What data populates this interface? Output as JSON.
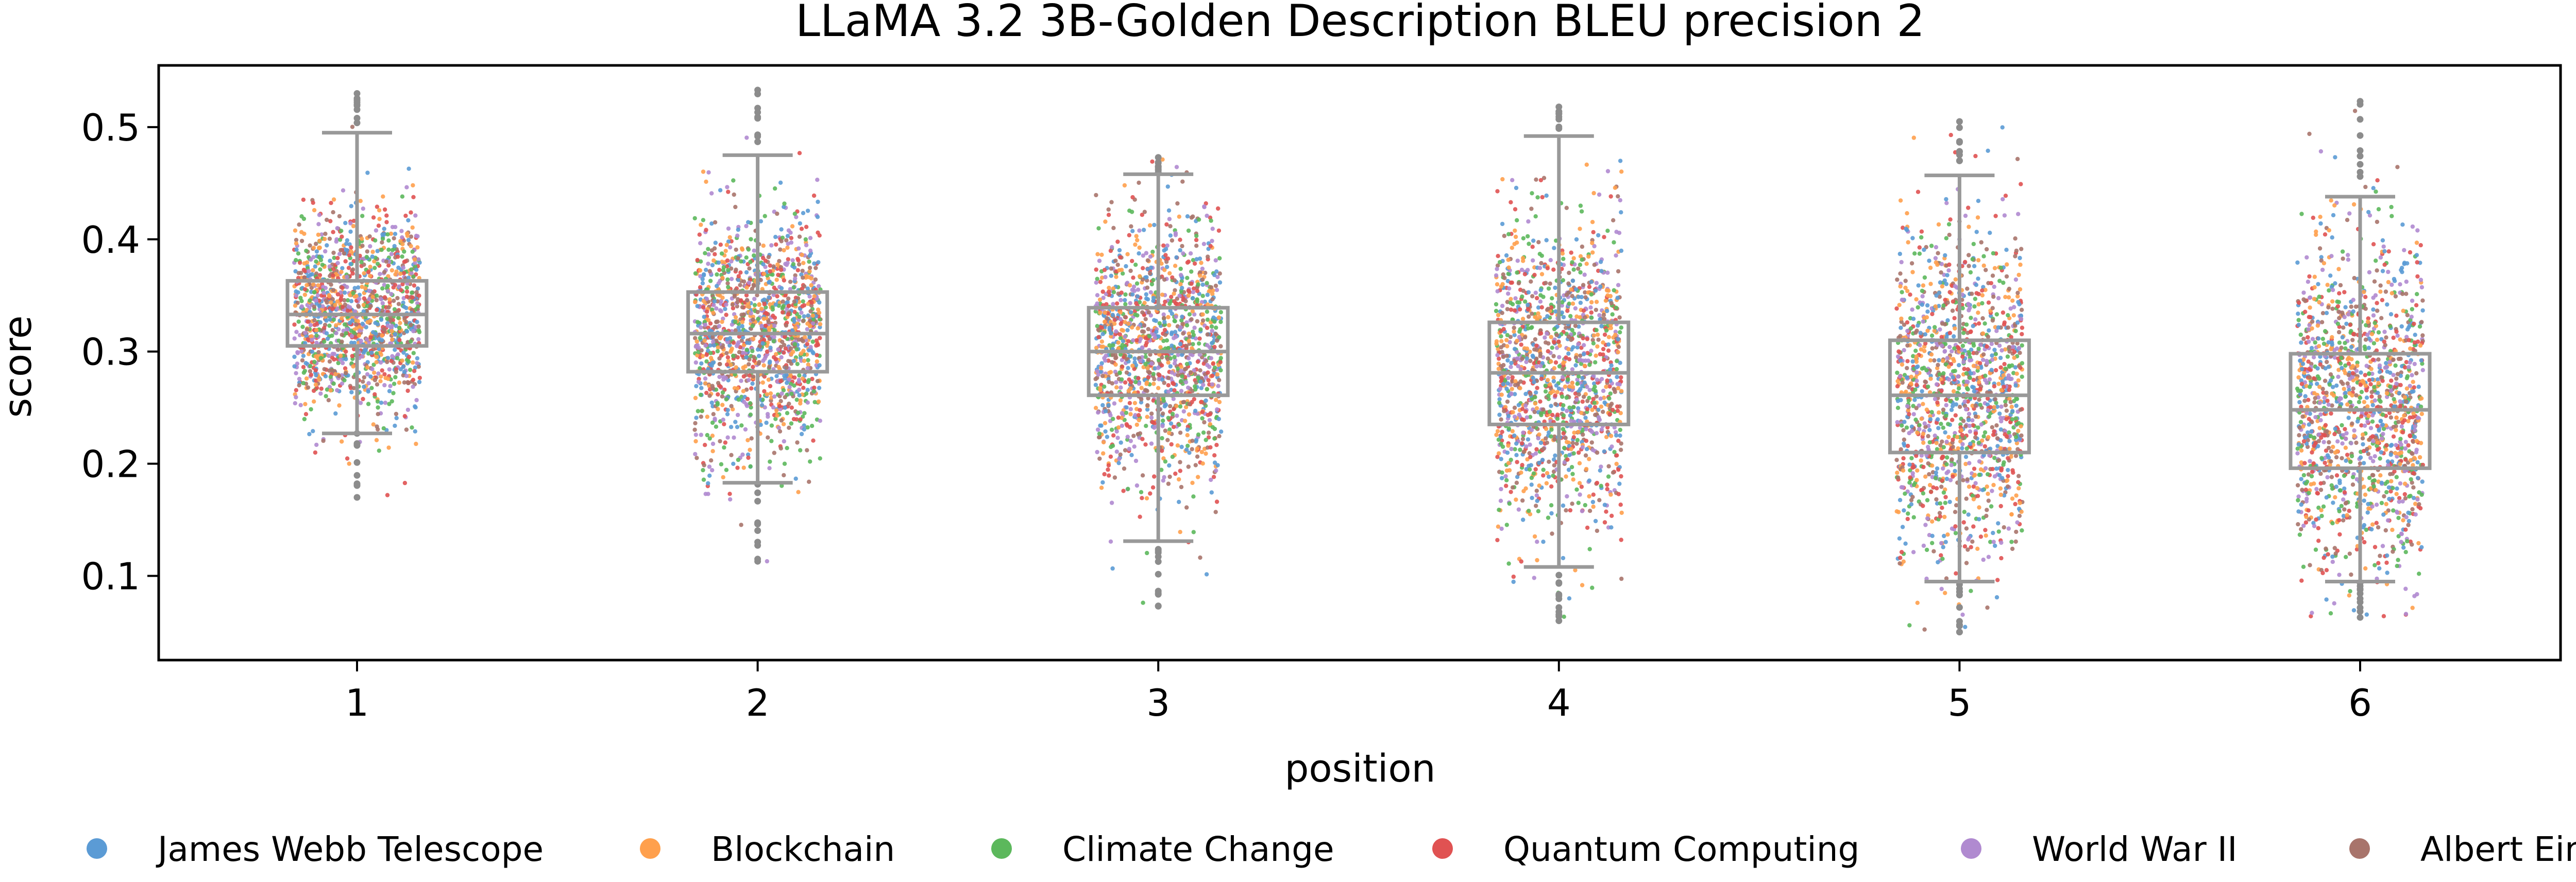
{
  "chart_data": {
    "type": "box-strip",
    "title": "LLaMA 3.2 3B-Golden Description BLEU precision 2",
    "xlabel": "position",
    "ylabel": "score",
    "categories": [
      "1",
      "2",
      "3",
      "4",
      "5",
      "6"
    ],
    "ylim": [
      0.025,
      0.555
    ],
    "yticks": [
      0.1,
      0.2,
      0.3,
      0.4,
      0.5
    ],
    "ytick_labels": [
      "0.1",
      "0.2",
      "0.3",
      "0.4",
      "0.5"
    ],
    "grid": false,
    "legend_position": "bottom",
    "boxes": [
      {
        "position": "1",
        "q1": 0.305,
        "median": 0.333,
        "q3": 0.363,
        "whisker_low": 0.227,
        "whisker_high": 0.495,
        "point_min": 0.17,
        "point_max": 0.53
      },
      {
        "position": "2",
        "q1": 0.282,
        "median": 0.316,
        "q3": 0.353,
        "whisker_low": 0.183,
        "whisker_high": 0.475,
        "point_min": 0.113,
        "point_max": 0.533
      },
      {
        "position": "3",
        "q1": 0.261,
        "median": 0.3,
        "q3": 0.339,
        "whisker_low": 0.131,
        "whisker_high": 0.458,
        "point_min": 0.073,
        "point_max": 0.473
      },
      {
        "position": "4",
        "q1": 0.235,
        "median": 0.281,
        "q3": 0.326,
        "whisker_low": 0.108,
        "whisker_high": 0.492,
        "point_min": 0.06,
        "point_max": 0.518
      },
      {
        "position": "5",
        "q1": 0.21,
        "median": 0.261,
        "q3": 0.31,
        "whisker_low": 0.095,
        "whisker_high": 0.457,
        "point_min": 0.05,
        "point_max": 0.505
      },
      {
        "position": "6",
        "q1": 0.196,
        "median": 0.248,
        "q3": 0.298,
        "whisker_low": 0.095,
        "whisker_high": 0.438,
        "point_min": 0.063,
        "point_max": 0.523
      }
    ],
    "series": [
      {
        "name": "James Webb Telescope",
        "color": "#5b9bd5"
      },
      {
        "name": "Blockchain",
        "color": "#ffa04d"
      },
      {
        "name": "Climate Change",
        "color": "#5cb85c"
      },
      {
        "name": "Quantum Computing",
        "color": "#e05252"
      },
      {
        "name": "World War II",
        "color": "#b08ad0"
      },
      {
        "name": "Albert Einstein",
        "color": "#a8746b"
      }
    ],
    "box_color": "#999999",
    "outlier_color": "#8c8c8c"
  }
}
